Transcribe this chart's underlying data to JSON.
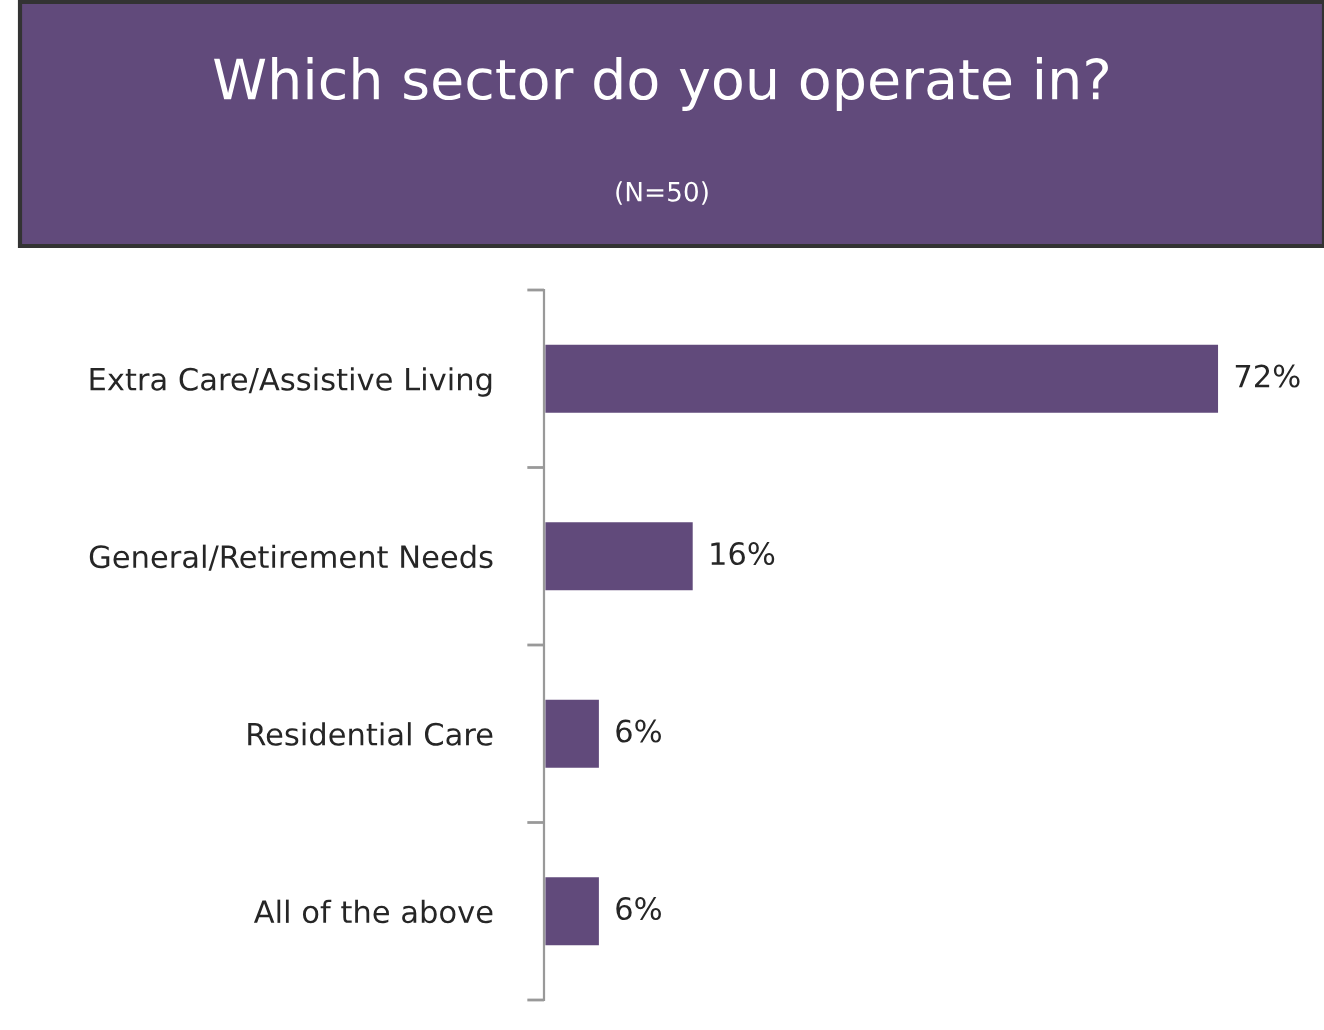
{
  "chart_data": {
    "type": "bar",
    "orientation": "horizontal",
    "title": "Which sector do you operate in?",
    "subtitle": "(N=50)",
    "categories": [
      "Extra Care/Assistive Living",
      "General/Retirement Needs",
      "Residential Care",
      "All of the above"
    ],
    "values": [
      72,
      16,
      6,
      6
    ],
    "value_labels": [
      "72%",
      "16%",
      "6%",
      "6%"
    ],
    "color": "#614a7b",
    "grid": false,
    "legend": false
  }
}
